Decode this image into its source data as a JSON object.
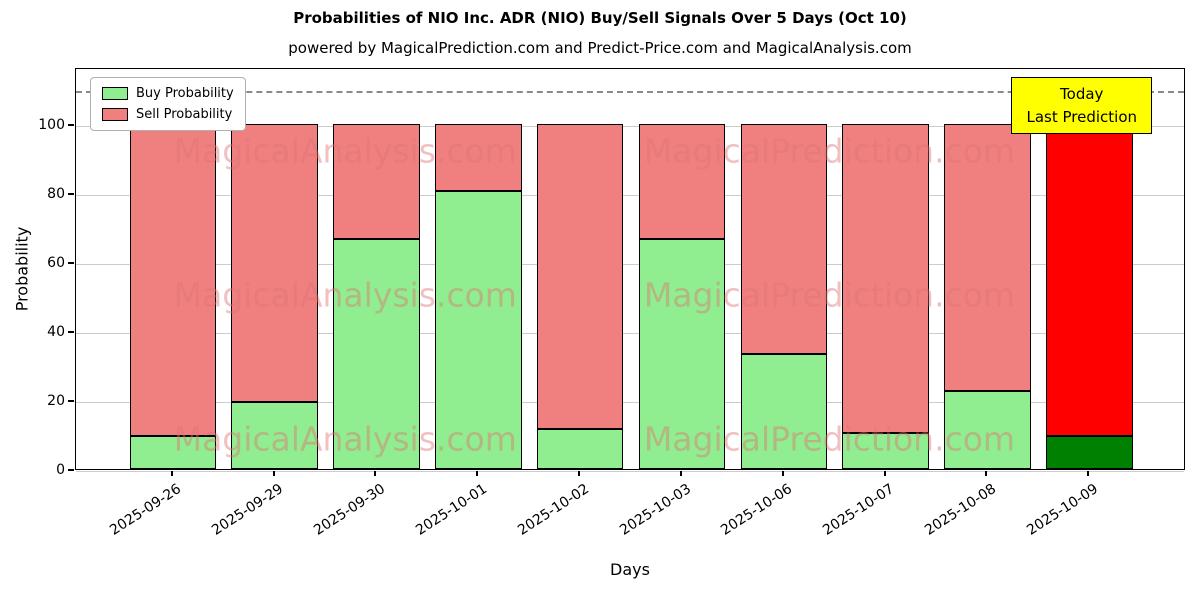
{
  "title": "Probabilities of NIO Inc. ADR (NIO) Buy/Sell Signals Over 5 Days (Oct 10)",
  "subtitle": "powered by MagicalPrediction.com and Predict-Price.com and MagicalAnalysis.com",
  "legend": {
    "buy_label": "Buy Probability",
    "sell_label": "Sell Probability"
  },
  "annotation": {
    "line1": "Today",
    "line2": "Last Prediction"
  },
  "watermarks": [
    "MagicalAnalysis.com",
    "MagicalPrediction.com"
  ],
  "colors": {
    "buy": "#90EE90",
    "sell": "#F08080",
    "buy_today": "#008000",
    "sell_today": "#FF0000",
    "annotation_bg": "#FFFF00",
    "gridline": "#cccccc",
    "dashed_line": "#8a8a8a"
  },
  "chart_data": {
    "type": "bar",
    "stacked": true,
    "title": "Probabilities of NIO Inc. ADR (NIO) Buy/Sell Signals Over 5 Days (Oct 10)",
    "xlabel": "Days",
    "ylabel": "Probability",
    "categories": [
      "2025-09-26",
      "2025-09-29",
      "2025-09-30",
      "2025-10-01",
      "2025-10-02",
      "2025-10-03",
      "2025-10-06",
      "2025-10-07",
      "2025-10-08",
      "2025-10-09"
    ],
    "series": [
      {
        "name": "Buy Probability",
        "values": [
          9.5,
          19.5,
          66.7,
          80.5,
          11.5,
          66.7,
          33.3,
          10.5,
          22.5,
          9.5
        ]
      },
      {
        "name": "Sell Probability",
        "values": [
          90.5,
          80.5,
          33.3,
          19.5,
          88.5,
          33.3,
          66.7,
          89.5,
          77.5,
          90.5
        ]
      }
    ],
    "ylim": [
      0,
      116.5
    ],
    "yticks": [
      0,
      20,
      40,
      60,
      80,
      100
    ],
    "dashed_line_y": 110,
    "grid": true,
    "legend_position": "upper left"
  }
}
